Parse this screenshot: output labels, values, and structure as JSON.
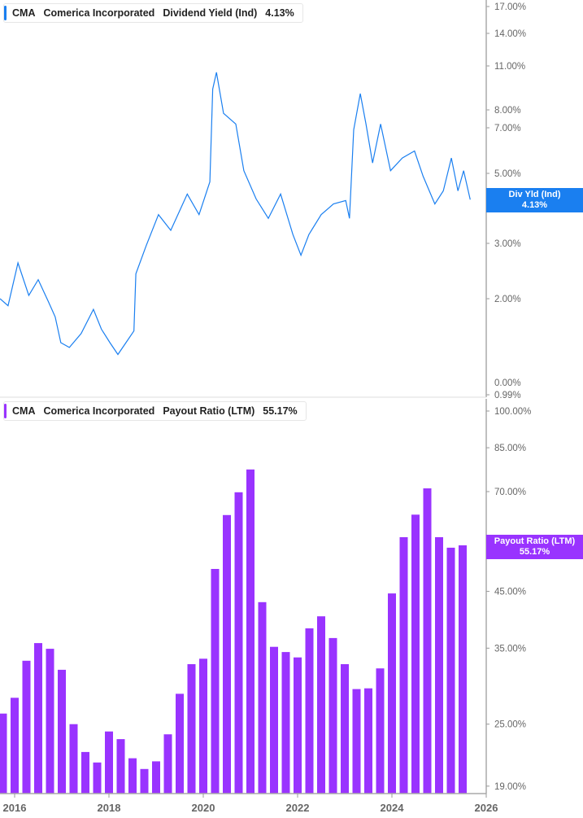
{
  "colors": {
    "yield": "#1a7ff0",
    "payout": "#9933ff",
    "axis": "#aaaaaa"
  },
  "top_legend": {
    "ticker": "CMA",
    "company": "Comerica Incorporated",
    "metric": "Dividend Yield (Ind)",
    "value": "4.13%"
  },
  "bottom_legend": {
    "ticker": "CMA",
    "company": "Comerica Incorporated",
    "metric": "Payout Ratio (LTM)",
    "value": "55.17%"
  },
  "top_badge": {
    "label": "Div Yld (Ind)",
    "value": "4.13%"
  },
  "bottom_badge": {
    "label": "Payout Ratio (LTM)",
    "value": "55.17%"
  },
  "chart_data": [
    {
      "type": "line",
      "title": "Dividend Yield (Ind)",
      "yscale": "log",
      "y_ticks": [
        {
          "v": 17,
          "label": "17.00%"
        },
        {
          "v": 14,
          "label": "14.00%"
        },
        {
          "v": 11,
          "label": "11.00%"
        },
        {
          "v": 8,
          "label": "8.00%"
        },
        {
          "v": 7,
          "label": "7.00%"
        },
        {
          "v": 5,
          "label": "5.00%"
        },
        {
          "v": 3,
          "label": "3.00%"
        },
        {
          "v": 2,
          "label": "2.00%"
        },
        {
          "v": 0.99,
          "label": "0.99%"
        },
        {
          "v": 0.0,
          "label": "0.00%"
        }
      ],
      "x": [
        2015.69,
        2015.86,
        2016.07,
        2016.3,
        2016.5,
        2016.72,
        2016.86,
        2016.98,
        2017.16,
        2017.41,
        2017.67,
        2017.84,
        2018.02,
        2018.19,
        2018.36,
        2018.53,
        2018.57,
        2018.79,
        2019.05,
        2019.31,
        2019.66,
        2019.91,
        2020.14,
        2020.2,
        2020.28,
        2020.43,
        2020.69,
        2020.86,
        2021.12,
        2021.38,
        2021.64,
        2021.9,
        2022.07,
        2022.24,
        2022.5,
        2022.76,
        2023.02,
        2023.1,
        2023.19,
        2023.33,
        2023.45,
        2023.59,
        2023.76,
        2023.97,
        2024.22,
        2024.48,
        2024.66,
        2024.91,
        2025.09,
        2025.26,
        2025.4,
        2025.52,
        2025.66
      ],
      "values": [
        2.0,
        1.9,
        2.6,
        2.05,
        2.3,
        1.95,
        1.75,
        1.45,
        1.4,
        1.55,
        1.85,
        1.6,
        1.45,
        1.33,
        1.45,
        1.58,
        2.4,
        2.95,
        3.7,
        3.3,
        4.3,
        3.7,
        4.7,
        9.3,
        10.5,
        7.8,
        7.2,
        5.1,
        4.15,
        3.6,
        4.3,
        3.2,
        2.75,
        3.2,
        3.7,
        4.0,
        4.1,
        3.6,
        6.9,
        9.0,
        7.2,
        5.4,
        7.2,
        5.1,
        5.6,
        5.9,
        4.9,
        4.0,
        4.4,
        5.6,
        4.4,
        5.1,
        4.13
      ]
    },
    {
      "type": "bar",
      "title": "Payout Ratio (LTM)",
      "yscale": "log",
      "y_ticks": [
        {
          "v": 100,
          "label": "100.00%"
        },
        {
          "v": 85,
          "label": "85.00%"
        },
        {
          "v": 70,
          "label": "70.00%"
        },
        {
          "v": 45,
          "label": "45.00%"
        },
        {
          "v": 35,
          "label": "35.00%"
        },
        {
          "v": 25,
          "label": "25.00%"
        },
        {
          "v": 19,
          "label": "19.00%"
        }
      ],
      "x_ticks": [
        "2016",
        "2018",
        "2020",
        "2022",
        "2024",
        "2026"
      ],
      "x_start": 2015.75,
      "x_step": 0.25,
      "values": [
        26.2,
        28.1,
        33.1,
        35.8,
        34.9,
        31.8,
        25.0,
        22.1,
        21.1,
        24.2,
        23.4,
        21.5,
        20.5,
        21.2,
        23.9,
        28.6,
        32.6,
        33.4,
        49.7,
        63.1,
        69.8,
        77.2,
        42.9,
        35.2,
        34.4,
        33.6,
        38.2,
        40.3,
        36.6,
        32.6,
        29.2,
        29.3,
        32.0,
        44.6,
        57.2,
        63.2,
        71.0,
        57.2,
        54.6,
        55.17
      ]
    }
  ]
}
